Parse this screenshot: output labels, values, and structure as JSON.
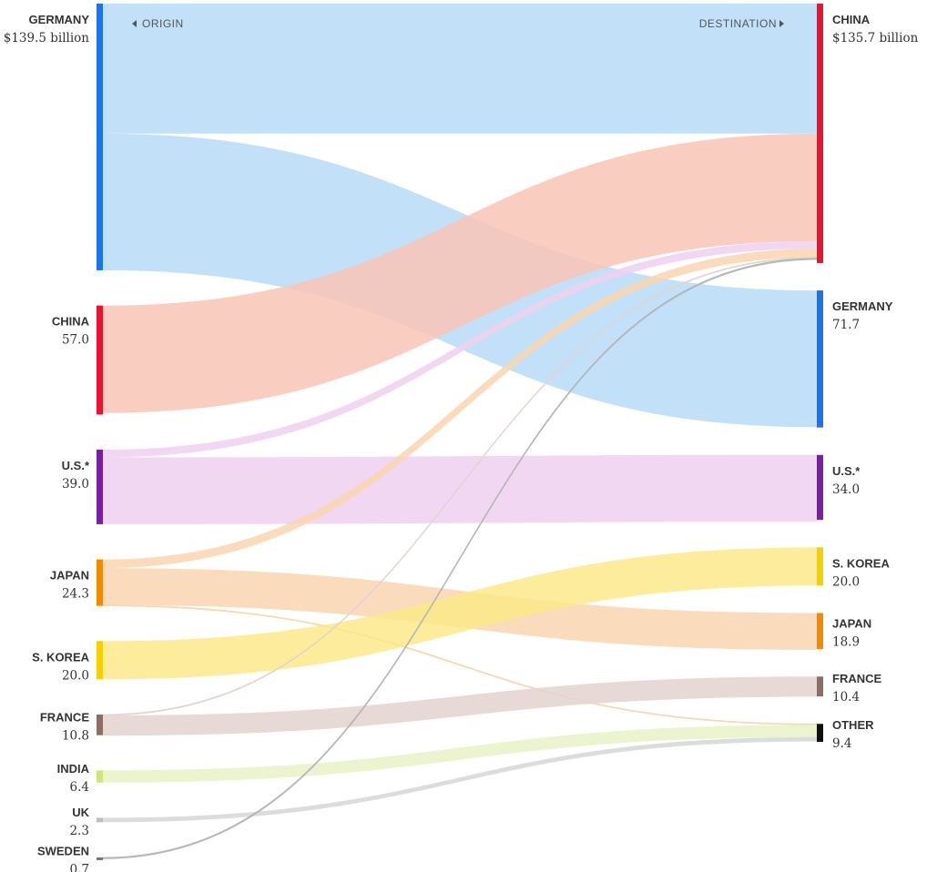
{
  "chart_data": {
    "type": "sankey",
    "headers": {
      "origin": "ORIGIN",
      "destination": "DESTINATION"
    },
    "origins": [
      {
        "id": "germany",
        "name": "GERMANY",
        "value_label": "$139.5 billion",
        "value": 139.5,
        "color": "#1a73e8",
        "flow_color": "#b7dcf7"
      },
      {
        "id": "china",
        "name": "CHINA",
        "value_label": "57.0",
        "value": 57.0,
        "color": "#e8132e",
        "flow_color": "#f9c4b6"
      },
      {
        "id": "us",
        "name": "U.S.*",
        "value_label": "39.0",
        "value": 39.0,
        "color": "#7b1fa2",
        "flow_color": "#eed0ef"
      },
      {
        "id": "japan",
        "name": "JAPAN",
        "value_label": "24.3",
        "value": 24.3,
        "color": "#f28a00",
        "flow_color": "#f9d6b0"
      },
      {
        "id": "skorea",
        "name": "S. KOREA",
        "value_label": "20.0",
        "value": 20.0,
        "color": "#f5d000",
        "flow_color": "#fbe98a"
      },
      {
        "id": "france",
        "name": "FRANCE",
        "value_label": "10.8",
        "value": 10.8,
        "color": "#8d6e63",
        "flow_color": "#e3d3cf"
      },
      {
        "id": "india",
        "name": "INDIA",
        "value_label": "6.4",
        "value": 6.4,
        "color": "#cde67a",
        "flow_color": "#e8f2c6"
      },
      {
        "id": "uk",
        "name": "UK",
        "value_label": "2.3",
        "value": 2.3,
        "color": "#bdbdbd",
        "flow_color": "#d6d6d6"
      },
      {
        "id": "sweden",
        "name": "SWEDEN",
        "value_label": "0.7",
        "value": 0.7,
        "color": "#777777",
        "flow_color": "#b5b5b5"
      }
    ],
    "destinations": [
      {
        "id": "china",
        "name": "CHINA",
        "value_label": "$135.7 billion",
        "value": 135.7,
        "color": "#e8132e"
      },
      {
        "id": "germany",
        "name": "GERMANY",
        "value_label": "71.7",
        "value": 71.7,
        "color": "#1a73e8"
      },
      {
        "id": "us",
        "name": "U.S.*",
        "value_label": "34.0",
        "value": 34.0,
        "color": "#7b1fa2"
      },
      {
        "id": "skorea",
        "name": "S. KOREA",
        "value_label": "20.0",
        "value": 20.0,
        "color": "#f5d000"
      },
      {
        "id": "japan",
        "name": "JAPAN",
        "value_label": "18.9",
        "value": 18.9,
        "color": "#f28a00"
      },
      {
        "id": "france",
        "name": "FRANCE",
        "value_label": "10.4",
        "value": 10.4,
        "color": "#8d6e63"
      },
      {
        "id": "other",
        "name": "OTHER",
        "value_label": "9.4",
        "value": 9.4,
        "color": "#111111"
      }
    ],
    "flows": [
      {
        "from": "germany",
        "to": "china",
        "value": 68
      },
      {
        "from": "germany",
        "to": "germany",
        "value": 71.5
      },
      {
        "from": "china",
        "to": "china",
        "value": 56.2
      },
      {
        "from": "us",
        "to": "china",
        "value": 4
      },
      {
        "from": "us",
        "to": "us",
        "value": 35
      },
      {
        "from": "japan",
        "to": "china",
        "value": 4.5
      },
      {
        "from": "japan",
        "to": "japan",
        "value": 19.3
      },
      {
        "from": "japan",
        "to": "other",
        "value": 0.5
      },
      {
        "from": "skorea",
        "to": "skorea",
        "value": 20
      },
      {
        "from": "france",
        "to": "china",
        "value": 0.2
      },
      {
        "from": "france",
        "to": "france",
        "value": 10.6
      },
      {
        "from": "india",
        "to": "other",
        "value": 6.4
      },
      {
        "from": "uk",
        "to": "other",
        "value": 2.3
      },
      {
        "from": "sweden",
        "to": "china",
        "value": 0.7
      }
    ]
  }
}
